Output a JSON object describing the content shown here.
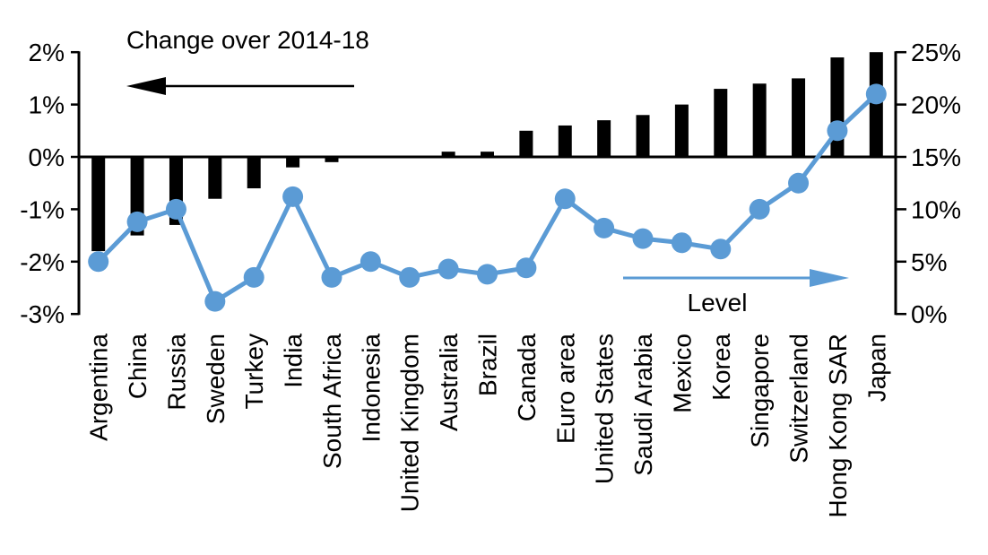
{
  "chart_data": {
    "type": "combo",
    "title": "",
    "categories": [
      "Argentina",
      "China",
      "Russia",
      "Sweden",
      "Turkey",
      "India",
      "South Africa",
      "Indonesia",
      "United Kingdom",
      "Australia",
      "Brazil",
      "Canada",
      "Euro area",
      "United States",
      "Saudi Arabia",
      "Mexico",
      "Korea",
      "Singapore",
      "Switzerland",
      "Hong Kong SAR",
      "Japan"
    ],
    "series": [
      {
        "name": "Change over 2014-18",
        "type": "bar",
        "axis": "left",
        "color": "#000000",
        "values": [
          -1.8,
          -1.5,
          -1.3,
          -0.8,
          -0.6,
          -0.2,
          -0.1,
          0.0,
          0.0,
          0.1,
          0.1,
          0.5,
          0.6,
          0.7,
          0.8,
          1.0,
          1.3,
          1.4,
          1.5,
          1.9,
          2.0
        ]
      },
      {
        "name": "Level",
        "type": "line",
        "axis": "right",
        "color": "#5B9BD5",
        "values": [
          5.0,
          8.8,
          10.0,
          1.2,
          3.5,
          11.2,
          3.5,
          5.0,
          3.5,
          4.3,
          3.8,
          4.4,
          11.0,
          8.2,
          7.2,
          6.8,
          6.2,
          10.0,
          12.5,
          17.5,
          21.0
        ]
      }
    ],
    "left_axis": {
      "tick_labels": [
        "2%",
        "1%",
        "0%",
        "-1%",
        "-2%",
        "-3%"
      ],
      "tick_values": [
        2,
        1,
        0,
        -1,
        -2,
        -3
      ],
      "min": -3,
      "max": 2
    },
    "right_axis": {
      "tick_labels": [
        "25%",
        "20%",
        "15%",
        "10%",
        "5%",
        "0%"
      ],
      "tick_values": [
        25,
        20,
        15,
        10,
        5,
        0
      ],
      "min": 0,
      "max": 25
    },
    "annotations": {
      "bar_label": "Change over 2014-18",
      "bar_arrow_direction": "left",
      "line_label": "Level",
      "line_arrow_direction": "right"
    },
    "grid": false,
    "legend_position": "none",
    "plot_background": "#ffffff"
  }
}
